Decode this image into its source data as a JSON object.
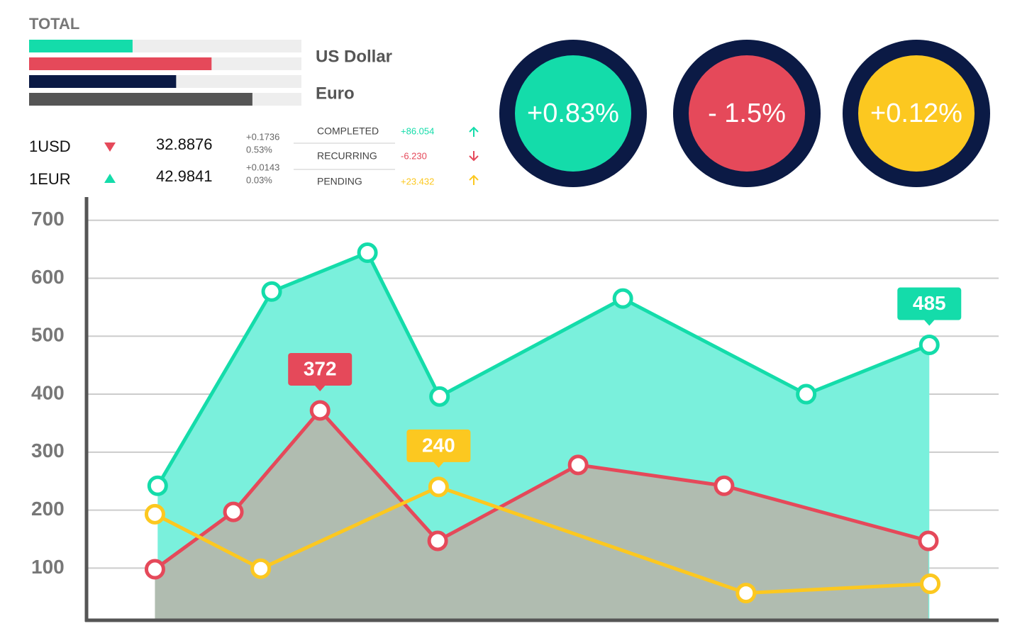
{
  "total": {
    "title": "TOTAL",
    "bars": [
      {
        "value": 38,
        "color": "#14dcaa"
      },
      {
        "value": 67,
        "color": "#e5495a"
      },
      {
        "value": 54,
        "color": "#0b1a45"
      },
      {
        "value": 82,
        "color": "#555555"
      }
    ],
    "labels": [
      "US Dollar",
      "Euro"
    ]
  },
  "rates": [
    {
      "name": "1USD",
      "rate": "32.8876",
      "change": "+0.1736",
      "percent": "0.53%"
    },
    {
      "name": "1EUR",
      "rate": "42.9841",
      "change": "+0.0143",
      "percent": "0.03%"
    }
  ],
  "status": [
    {
      "label": "COMPLETED",
      "value": "+86.054"
    },
    {
      "label": "RECURRING",
      "value": "-6.230"
    },
    {
      "label": "PENDING",
      "value": "+23.432"
    }
  ],
  "circles": [
    "+0.83%",
    "- 1.5%",
    "+0.12%"
  ],
  "chart_data": {
    "type": "line",
    "xlim": [
      0,
      100
    ],
    "ylim": [
      10,
      740
    ],
    "yticks": [
      100,
      200,
      300,
      400,
      500,
      600,
      700
    ],
    "grid": true,
    "series": [
      {
        "color": "#14dcaa",
        "area": "#7af0dc",
        "x": [
          7.8,
          20.3,
          30.8,
          38.7,
          58.8,
          78.9,
          92.4
        ],
        "values": [
          242,
          577,
          644,
          396,
          565,
          400,
          485
        ],
        "value_labels": [
          null,
          null,
          null,
          null,
          null,
          null,
          "485"
        ]
      },
      {
        "color": "#e5495a",
        "area": "#b0bcb0",
        "x": [
          7.5,
          16.1,
          25.6,
          38.5,
          53.9,
          69.9,
          92.3
        ],
        "values": [
          98,
          197,
          372,
          147,
          278,
          242,
          147
        ],
        "value_labels": [
          null,
          null,
          "372",
          null,
          null,
          null,
          null
        ]
      },
      {
        "color": "#fcc820",
        "x": [
          7.5,
          19.1,
          38.6,
          72.3,
          92.5
        ],
        "values": [
          193,
          99,
          240,
          57,
          73
        ],
        "value_labels": [
          null,
          null,
          "240",
          null,
          null
        ]
      }
    ]
  }
}
